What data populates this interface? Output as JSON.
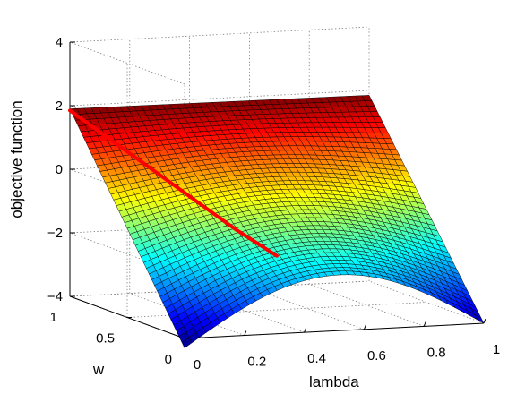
{
  "chart_data": {
    "type": "surface",
    "title": "",
    "xlabel": "lambda",
    "ylabel": "w",
    "zlabel": "objective function",
    "xlim": [
      0,
      1
    ],
    "ylim": [
      0,
      1
    ],
    "zlim": [
      -4,
      4
    ],
    "x_ticks": [
      "0",
      "0.2",
      "0.4",
      "0.6",
      "0.8",
      "1"
    ],
    "y_ticks": [
      "0",
      "0.5",
      "1"
    ],
    "z_ticks": [
      "4",
      "2",
      "0",
      "−2",
      "−4"
    ],
    "colormap": "jet",
    "grid": true,
    "surface_corners": {
      "lambda0_w0": -4.3,
      "lambda0_w1": 1.9,
      "lambda1_w0": -4.0,
      "lambda1_w1": 1.85
    },
    "surface_profile_note": "",
    "overlay_line": {
      "color": "#ff0000",
      "points": [
        {
          "lambda": 0.0,
          "w": 1.0,
          "z": 1.85
        },
        {
          "lambda": 0.1,
          "w": 0.9,
          "z": 1.0
        },
        {
          "lambda": 0.2,
          "w": 0.8,
          "z": 0.15
        },
        {
          "lambda": 0.3,
          "w": 0.7,
          "z": -0.7
        },
        {
          "lambda": 0.4,
          "w": 0.6,
          "z": -1.55
        },
        {
          "lambda": 0.5,
          "w": 0.5,
          "z": -2.3
        }
      ]
    }
  }
}
